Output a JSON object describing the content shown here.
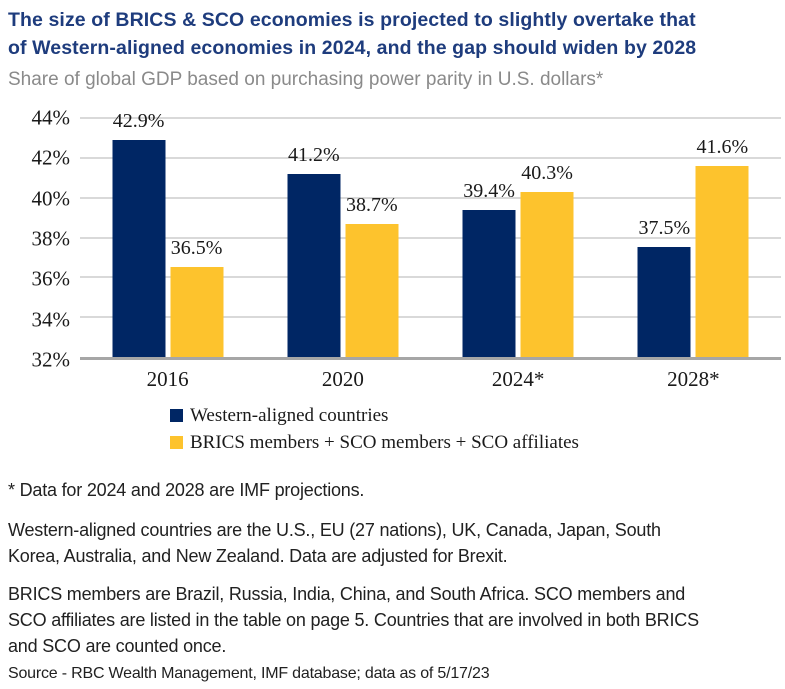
{
  "header": {
    "title_line1": "The size of BRICS & SCO economies is projected to slightly overtake that",
    "title_line2": "of Western-aligned economies in 2024, and the gap should widen by 2028",
    "subtitle": "Share of global GDP based on purchasing power parity in U.S. dollars*"
  },
  "chart_data": {
    "type": "bar",
    "categories": [
      "2016",
      "2020",
      "2024*",
      "2028*"
    ],
    "series": [
      {
        "name": "Western-aligned countries",
        "color": "#002664",
        "values": [
          42.9,
          41.2,
          39.4,
          37.5
        ],
        "labels": [
          "42.9%",
          "41.2%",
          "39.4%",
          "37.5%"
        ]
      },
      {
        "name": "BRICS members + SCO members + SCO affiliates",
        "color": "#FDC32D",
        "values": [
          36.5,
          38.7,
          40.3,
          41.6
        ],
        "labels": [
          "36.5%",
          "38.7%",
          "40.3%",
          "41.6%"
        ]
      }
    ],
    "ylim": [
      32,
      44
    ],
    "ytick_step": 2,
    "yticks": [
      "44%",
      "42%",
      "40%",
      "38%",
      "36%",
      "34%",
      "32%"
    ],
    "grid": true,
    "legend_position": "bottom-left"
  },
  "footnotes": {
    "projection_note": "* Data for 2024 and 2028 are IMF projections.",
    "western_note": "Western-aligned countries are the U.S., EU (27 nations), UK, Canada, Japan, South Korea, Australia, and New Zealand. Data are adjusted for Brexit.",
    "brics_note": "BRICS members are Brazil, Russia, India, China, and South Africa. SCO members and SCO affiliates are listed in the table on page 5. Countries that are involved in both BRICS and SCO are counted once.",
    "source": "Source - RBC Wealth Management, IMF database; data as of 5/17/23"
  },
  "colors": {
    "title_blue": "#1e3c7d",
    "subtitle_gray": "#8a8a8a",
    "navy": "#002664",
    "yellow": "#FDC32D",
    "gridline": "#d9d9d9",
    "baseline": "#a6a6a6",
    "chart_text": "#1a1a1a"
  }
}
